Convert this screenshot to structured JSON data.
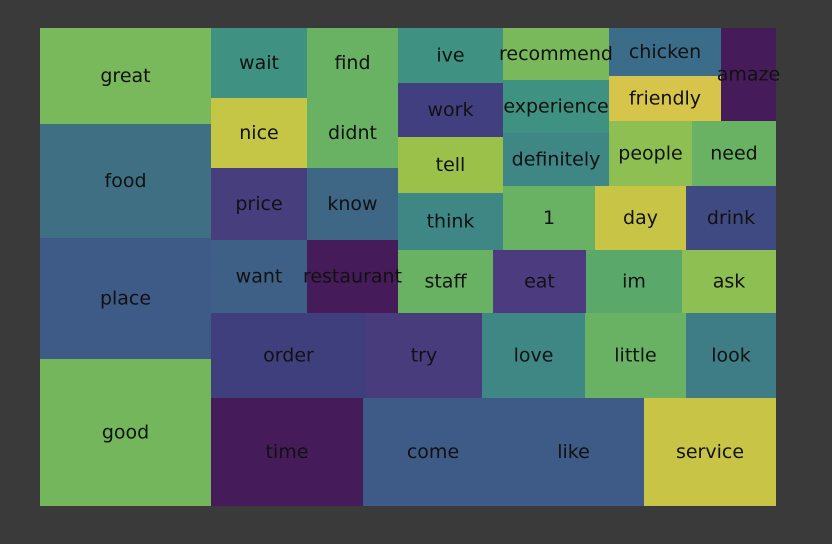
{
  "chart_data": {
    "type": "treemap",
    "title": "",
    "tiles": [
      {
        "label": "great",
        "color": "#7ab85c"
      },
      {
        "label": "food",
        "color": "#3e6f83"
      },
      {
        "label": "place",
        "color": "#3e5a86"
      },
      {
        "label": "good",
        "color": "#74b65c"
      },
      {
        "label": "wait",
        "color": "#3f9281"
      },
      {
        "label": "find",
        "color": "#6ab263"
      },
      {
        "label": "ive",
        "color": "#3f9281"
      },
      {
        "label": "recommend",
        "color": "#7ab85c"
      },
      {
        "label": "chicken",
        "color": "#3b6d8a"
      },
      {
        "label": "amaze",
        "color": "#461b5a"
      },
      {
        "label": "nice",
        "color": "#c5c646"
      },
      {
        "label": "didnt",
        "color": "#6ab263"
      },
      {
        "label": "work",
        "color": "#423f80"
      },
      {
        "label": "experience",
        "color": "#3f9281"
      },
      {
        "label": "friendly",
        "color": "#d7c44b"
      },
      {
        "label": "tell",
        "color": "#9cc14a"
      },
      {
        "label": "definitely",
        "color": "#3e8785"
      },
      {
        "label": "people",
        "color": "#8dbf52"
      },
      {
        "label": "need",
        "color": "#6ab263"
      },
      {
        "label": "price",
        "color": "#473e7e"
      },
      {
        "label": "know",
        "color": "#3e6685"
      },
      {
        "label": "think",
        "color": "#3e8785"
      },
      {
        "label": "1",
        "color": "#6ab263"
      },
      {
        "label": "day",
        "color": "#c8c546"
      },
      {
        "label": "drink",
        "color": "#3f4a82"
      },
      {
        "label": "want",
        "color": "#3e5f86"
      },
      {
        "label": "restaurant",
        "color": "#461b5a"
      },
      {
        "label": "staff",
        "color": "#6ab263"
      },
      {
        "label": "eat",
        "color": "#4d3b7f"
      },
      {
        "label": "im",
        "color": "#5ba96a"
      },
      {
        "label": "ask",
        "color": "#8dbf52"
      },
      {
        "label": "order",
        "color": "#403f7e"
      },
      {
        "label": "try",
        "color": "#483c7d"
      },
      {
        "label": "love",
        "color": "#3e8785"
      },
      {
        "label": "little",
        "color": "#6ab263"
      },
      {
        "label": "look",
        "color": "#3e7d85"
      },
      {
        "label": "time",
        "color": "#461b5a"
      },
      {
        "label": "come",
        "color": "#3e5a86"
      },
      {
        "label": "like",
        "color": "#3e5a86"
      },
      {
        "label": "service",
        "color": "#c8c546"
      }
    ]
  }
}
